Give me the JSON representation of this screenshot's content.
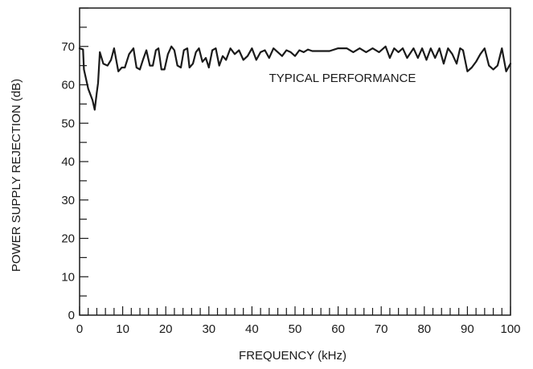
{
  "chart_data": {
    "type": "line",
    "title": "",
    "xlabel": "FREQUENCY (kHz)",
    "ylabel": "POWER SUPPLY REJECTION (dB)",
    "annotation": "TYPICAL PERFORMANCE",
    "xlim": [
      0,
      100
    ],
    "ylim": [
      0,
      80
    ],
    "x_ticks": [
      0,
      10,
      20,
      30,
      40,
      50,
      60,
      70,
      80,
      90,
      100
    ],
    "y_ticks": [
      0,
      10,
      20,
      30,
      40,
      50,
      60,
      70
    ],
    "x_minor_step": 2,
    "y_minor_step": 5,
    "grid": false,
    "colors": {
      "line": "#1a1a1a",
      "axes": "#1a1a1a"
    },
    "series": [
      {
        "x": [
          0,
          0.8,
          1.0,
          2.0,
          3.0,
          3.5,
          4.0,
          4.3,
          4.7,
          5.5,
          6.5,
          7.3,
          8.0,
          9.0,
          9.8,
          10.5,
          11.5,
          12.5,
          13.2,
          14.0,
          14.7,
          15.5,
          16.3,
          17.0,
          17.7,
          18.3,
          19.0,
          19.7,
          20.5,
          21.3,
          22.0,
          22.7,
          23.5,
          24.2,
          25.0,
          25.5,
          26.3,
          27.0,
          27.7,
          28.5,
          29.3,
          30.0,
          30.8,
          31.6,
          32.4,
          33.2,
          34.0,
          35.0,
          36.0,
          37.0,
          38.0,
          39.0,
          40.0,
          41.0,
          42.0,
          43.0,
          44.0,
          45.0,
          46.0,
          47.0,
          48.0,
          49.0,
          50.0,
          51.0,
          52.0,
          53.0,
          54.0,
          56.0,
          58.0,
          60.0,
          62.0,
          63.5,
          65.0,
          66.5,
          68.0,
          69.5,
          71.0,
          72.0,
          73.0,
          74.0,
          75.0,
          76.0,
          77.5,
          78.5,
          79.5,
          80.5,
          81.5,
          82.5,
          83.5,
          84.5,
          85.5,
          86.5,
          87.5,
          88.3,
          89.0,
          90.0,
          91.0,
          92.0,
          93.0,
          94.0,
          95.0,
          96.0,
          97.0,
          98.0,
          99.0,
          100.0
        ],
        "y": [
          69.5,
          69.2,
          64.0,
          59.0,
          56.0,
          53.5,
          58.0,
          60.5,
          68.5,
          65.5,
          65.0,
          66.5,
          69.5,
          63.5,
          64.5,
          64.5,
          68.0,
          69.5,
          64.5,
          64.0,
          66.5,
          69.0,
          65.0,
          65.0,
          69.0,
          69.5,
          64.0,
          64.0,
          68.0,
          70.0,
          69.0,
          65.0,
          64.5,
          69.0,
          69.5,
          64.5,
          65.5,
          68.5,
          69.5,
          66.0,
          67.0,
          64.5,
          69.0,
          69.5,
          65.0,
          67.5,
          66.5,
          69.5,
          68.0,
          69.0,
          66.5,
          67.5,
          69.5,
          66.5,
          68.5,
          69.0,
          67.0,
          69.5,
          68.5,
          67.5,
          69.0,
          68.5,
          67.5,
          69.0,
          68.5,
          69.2,
          68.8,
          68.8,
          68.8,
          69.5,
          69.5,
          68.5,
          69.5,
          68.5,
          69.5,
          68.5,
          70.0,
          67.0,
          69.5,
          68.5,
          69.5,
          67.0,
          69.5,
          67.0,
          69.5,
          66.5,
          69.5,
          67.0,
          69.5,
          65.5,
          69.5,
          68.0,
          65.5,
          69.5,
          69.0,
          63.5,
          64.5,
          66.0,
          68.0,
          69.5,
          65.0,
          64.0,
          65.0,
          69.5,
          63.5,
          65.5
        ]
      }
    ]
  }
}
